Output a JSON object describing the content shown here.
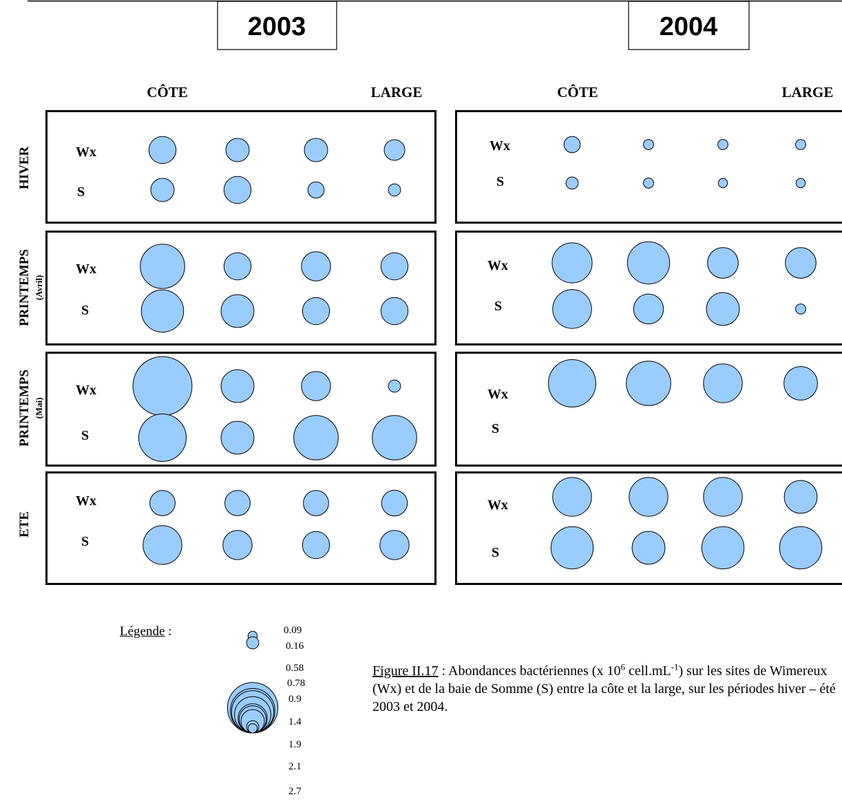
{
  "years": [
    "2003",
    "2004"
  ],
  "column_labels": {
    "left": "CÔTE",
    "right": "LARGE"
  },
  "seasons": [
    {
      "name": "HIVER",
      "sub": ""
    },
    {
      "name": "PRINTEMPS",
      "sub": "(Avril)"
    },
    {
      "name": "PRINTEMPS",
      "sub": "(Mai)"
    },
    {
      "name": "ETE",
      "sub": ""
    }
  ],
  "sites": [
    "Wx",
    "S"
  ],
  "legend": {
    "title": "Légende",
    "suffix": " :",
    "values": [
      0.09,
      0.16,
      0.58,
      0.78,
      0.9,
      1.4,
      1.9,
      2.1,
      2.7
    ],
    "labels": [
      "0.09",
      "0.16",
      "0.58",
      "0.78",
      "0.9",
      "1.4",
      "1.9",
      "2.1",
      "2.7"
    ]
  },
  "caption": {
    "ref": "Figure II.17",
    "text_pre": " : Abondances bactériennes (x 10",
    "sup1": "6",
    "text_mid": " cell.mL",
    "sup2": "-1",
    "text_post": ") sur les sites de Wimereux (Wx) et de la baie de Somme (S) entre la côte et la large, sur les périodes hiver – été 2003 et 2004."
  },
  "colors": {
    "bubble_fill": "#99ccff",
    "bubble_stroke": "#000000"
  },
  "chart_data": {
    "type": "bubble",
    "value_unit": "x 10^6 cell.mL^-1",
    "stations": [
      "station-1",
      "station-2",
      "station-3",
      "station-4"
    ],
    "panels": [
      {
        "year": "2003",
        "season": "HIVER",
        "Wx": [
          0.78,
          0.58,
          0.58,
          0.45
        ],
        "S": [
          0.58,
          0.78,
          0.28,
          0.16
        ]
      },
      {
        "year": "2003",
        "season": "PRINTEMPS (Avril)",
        "Wx": [
          2.1,
          0.78,
          0.9,
          0.78
        ],
        "S": [
          1.9,
          1.15,
          0.78,
          0.78
        ]
      },
      {
        "year": "2003",
        "season": "PRINTEMPS (Mai)",
        "Wx": [
          3.7,
          1.15,
          0.9,
          0.16
        ],
        "S": [
          2.4,
          1.15,
          2.1,
          2.1
        ]
      },
      {
        "year": "2003",
        "season": "ETE",
        "Wx": [
          0.68,
          0.68,
          0.68,
          0.7
        ],
        "S": [
          1.6,
          0.9,
          0.78,
          0.9
        ]
      },
      {
        "year": "2004",
        "season": "HIVER",
        "Wx": [
          0.28,
          0.11,
          0.11,
          0.11
        ],
        "S": [
          0.16,
          0.11,
          0.09,
          0.09
        ]
      },
      {
        "year": "2004",
        "season": "PRINTEMPS (Avril)",
        "Wx": [
          1.7,
          1.9,
          1.0,
          1.0
        ],
        "S": [
          1.6,
          0.95,
          1.15,
          0.11
        ]
      },
      {
        "year": "2004",
        "season": "PRINTEMPS (Mai)",
        "Wx": [
          2.4,
          2.1,
          1.6,
          1.2
        ],
        "S": []
      },
      {
        "year": "2004",
        "season": "ETE",
        "Wx": [
          1.6,
          1.6,
          1.6,
          1.15
        ],
        "S": [
          1.9,
          1.15,
          1.9,
          1.9
        ]
      }
    ]
  }
}
